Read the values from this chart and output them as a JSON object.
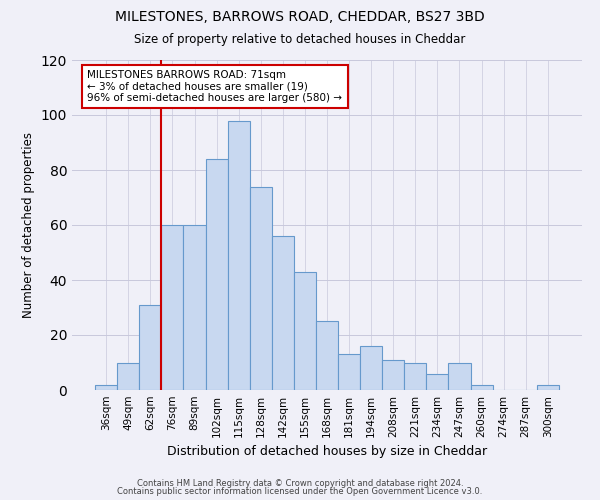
{
  "title": "MILESTONES, BARROWS ROAD, CHEDDAR, BS27 3BD",
  "subtitle": "Size of property relative to detached houses in Cheddar",
  "xlabel": "Distribution of detached houses by size in Cheddar",
  "ylabel": "Number of detached properties",
  "bar_color": "#c8d8f0",
  "bar_edge_color": "#6699cc",
  "categories": [
    "36sqm",
    "49sqm",
    "62sqm",
    "76sqm",
    "89sqm",
    "102sqm",
    "115sqm",
    "128sqm",
    "142sqm",
    "155sqm",
    "168sqm",
    "181sqm",
    "194sqm",
    "208sqm",
    "221sqm",
    "234sqm",
    "247sqm",
    "260sqm",
    "274sqm",
    "287sqm",
    "300sqm"
  ],
  "values": [
    2,
    10,
    31,
    60,
    60,
    84,
    98,
    74,
    56,
    43,
    25,
    13,
    16,
    11,
    10,
    6,
    10,
    2,
    0,
    0,
    2
  ],
  "ylim": [
    0,
    120
  ],
  "yticks": [
    0,
    20,
    40,
    60,
    80,
    100,
    120
  ],
  "marker_bin_index": 2,
  "annotation_title": "MILESTONES BARROWS ROAD: 71sqm",
  "annotation_line1": "← 3% of detached houses are smaller (19)",
  "annotation_line2": "96% of semi-detached houses are larger (580) →",
  "annotation_box_color": "#ffffff",
  "annotation_box_edge": "#cc0000",
  "marker_line_color": "#cc0000",
  "footer1": "Contains HM Land Registry data © Crown copyright and database right 2024.",
  "footer2": "Contains public sector information licensed under the Open Government Licence v3.0.",
  "bg_color": "#f0f0f8",
  "grid_color": "#c8c8dc"
}
